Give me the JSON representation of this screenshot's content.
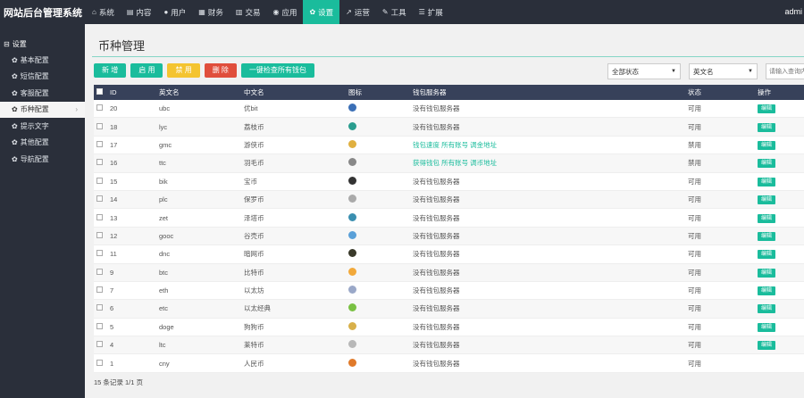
{
  "app": {
    "title": "网站后台管理系统",
    "user": "admi"
  },
  "nav": [
    {
      "label": "系统",
      "icon": "home-icon",
      "glyph": "⌂"
    },
    {
      "label": "内容",
      "icon": "content-icon",
      "glyph": "▤"
    },
    {
      "label": "用户",
      "icon": "user-icon",
      "glyph": "●"
    },
    {
      "label": "财务",
      "icon": "finance-icon",
      "glyph": "▦"
    },
    {
      "label": "交易",
      "icon": "trade-icon",
      "glyph": "▥"
    },
    {
      "label": "应用",
      "icon": "globe-icon",
      "glyph": "◉"
    },
    {
      "label": "设置",
      "icon": "gear-icon",
      "glyph": "✿",
      "active": true
    },
    {
      "label": "运营",
      "icon": "share-icon",
      "glyph": "↗"
    },
    {
      "label": "工具",
      "icon": "wrench-icon",
      "glyph": "✎"
    },
    {
      "label": "扩展",
      "icon": "menu-icon",
      "glyph": "☰"
    }
  ],
  "sidebar": {
    "heading": "设置",
    "items": [
      {
        "label": "基本配置"
      },
      {
        "label": "短信配置"
      },
      {
        "label": "客服配置"
      },
      {
        "label": "币种配置",
        "active": true
      },
      {
        "label": "提示文字"
      },
      {
        "label": "其他配置"
      },
      {
        "label": "导航配置"
      }
    ]
  },
  "page": {
    "title": "币种管理"
  },
  "toolbar": {
    "add": "新 增",
    "enable": "启 用",
    "disable": "禁 用",
    "delete": "删 除",
    "check_all": "一键检查所有钱包"
  },
  "filters": {
    "status": "全部状态",
    "field": "英文名",
    "search_placeholder": "请输入查询内"
  },
  "table": {
    "columns": [
      "ID",
      "英文名",
      "中文名",
      "图标",
      "钱包服务器",
      "状态",
      "操作"
    ],
    "rows": [
      {
        "id": "20",
        "en": "ubc",
        "cn": "优bit",
        "icon_color": "#3b6fb6",
        "svc": "没有钱包服务器",
        "svc_link": false,
        "status": "可用",
        "op": "编辑"
      },
      {
        "id": "18",
        "en": "lyc",
        "cn": "荔枝币",
        "icon_color": "#2a9d8f",
        "svc": "没有钱包服务器",
        "svc_link": false,
        "status": "可用",
        "op": "编辑"
      },
      {
        "id": "17",
        "en": "gmc",
        "cn": "游侠币",
        "icon_color": "#e0b040",
        "svc": "钱包速度 所有账号 调金地址",
        "svc_link": true,
        "status": "禁用",
        "op": "编辑"
      },
      {
        "id": "16",
        "en": "ttc",
        "cn": "羽毛币",
        "icon_color": "#888888",
        "svc": "获得钱包 所有账号 调币地址",
        "svc_link": true,
        "status": "禁用",
        "op": "编辑"
      },
      {
        "id": "15",
        "en": "bik",
        "cn": "宝币",
        "icon_color": "#333333",
        "svc": "没有钱包服务器",
        "svc_link": false,
        "status": "可用",
        "op": "编辑"
      },
      {
        "id": "14",
        "en": "plc",
        "cn": "保罗币",
        "icon_color": "#aaaaaa",
        "svc": "没有钱包服务器",
        "svc_link": false,
        "status": "可用",
        "op": "编辑"
      },
      {
        "id": "13",
        "en": "zet",
        "cn": "泽塔币",
        "icon_color": "#3a8fb0",
        "svc": "没有钱包服务器",
        "svc_link": false,
        "status": "可用",
        "op": "编辑"
      },
      {
        "id": "12",
        "en": "gooc",
        "cn": "谷壳币",
        "icon_color": "#5aa0d8",
        "svc": "没有钱包服务器",
        "svc_link": false,
        "status": "可用",
        "op": "编辑"
      },
      {
        "id": "11",
        "en": "dnc",
        "cn": "暗网币",
        "icon_color": "#3a3a2a",
        "svc": "没有钱包服务器",
        "svc_link": false,
        "status": "可用",
        "op": "编辑"
      },
      {
        "id": "9",
        "en": "btc",
        "cn": "比特币",
        "icon_color": "#f2a93b",
        "svc": "没有钱包服务器",
        "svc_link": false,
        "status": "可用",
        "op": "编辑"
      },
      {
        "id": "7",
        "en": "eth",
        "cn": "以太坊",
        "icon_color": "#9aa8c8",
        "svc": "没有钱包服务器",
        "svc_link": false,
        "status": "可用",
        "op": "编辑"
      },
      {
        "id": "6",
        "en": "etc",
        "cn": "以太经典",
        "icon_color": "#7ac143",
        "svc": "没有钱包服务器",
        "svc_link": false,
        "status": "可用",
        "op": "编辑"
      },
      {
        "id": "5",
        "en": "doge",
        "cn": "狗狗币",
        "icon_color": "#d8b04a",
        "svc": "没有钱包服务器",
        "svc_link": false,
        "status": "可用",
        "op": "编辑"
      },
      {
        "id": "4",
        "en": "ltc",
        "cn": "莱特币",
        "icon_color": "#b8b8b8",
        "svc": "没有钱包服务器",
        "svc_link": false,
        "status": "可用",
        "op": "编辑"
      },
      {
        "id": "1",
        "en": "cny",
        "cn": "人民币",
        "icon_color": "#e07a2a",
        "svc": "没有钱包服务器",
        "svc_link": false,
        "status": "可用",
        "op": ""
      }
    ]
  },
  "footer": {
    "summary": "15 条记录 1/1 页"
  },
  "colors": {
    "accent": "#1abc9c",
    "nav_bg": "#2a2f3a",
    "thead_bg": "#37415a",
    "yellow": "#f4c430",
    "red": "#e04e3c"
  }
}
